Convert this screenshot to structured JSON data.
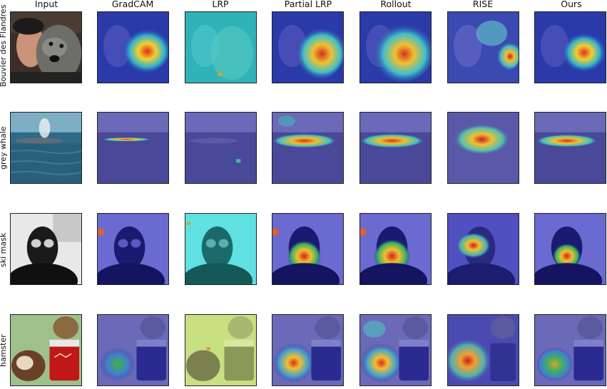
{
  "figure": {
    "columns": [
      "Input",
      "GradCAM",
      "LRP",
      "Partial LRP",
      "Rollout",
      "RISE",
      "Ours"
    ],
    "rows": [
      {
        "label": "Bouvier des Flandres"
      },
      {
        "label": "grey whale"
      },
      {
        "label": "ski mask"
      },
      {
        "label": "hamster"
      }
    ]
  }
}
